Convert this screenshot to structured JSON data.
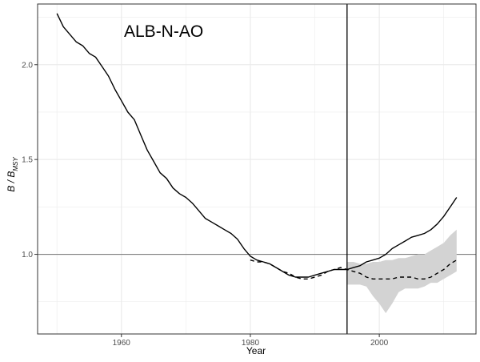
{
  "chart_data": {
    "type": "line",
    "title": "ALB-N-AO",
    "xlabel": "Year",
    "ylabel": {
      "main": "B / B",
      "subscript": "MSY"
    },
    "xlim": [
      1947,
      2015
    ],
    "ylim": [
      0.58,
      2.32
    ],
    "x_ticks": [
      1960,
      1980,
      2000
    ],
    "y_ticks": [
      1.0,
      1.5,
      2.0
    ],
    "y_tick_labels": [
      "1.0",
      "1.5",
      "2.0"
    ],
    "grid": true,
    "legend": "none",
    "reference_lines": {
      "horizontal_y": 1.0,
      "vertical_x": 1995
    },
    "colors": {
      "historical_line": "#000000",
      "projection_line": "#000000",
      "uncertainty_band": "#d3d3d3",
      "reference_line_h": "#808080",
      "reference_line_v": "#000000",
      "grid": "#ebebeb",
      "border": "#333333"
    },
    "series": [
      {
        "style": "solid",
        "x": [
          1950,
          1951,
          1952,
          1953,
          1954,
          1955,
          1956,
          1957,
          1958,
          1959,
          1960,
          1961,
          1962,
          1963,
          1964,
          1965,
          1966,
          1967,
          1968,
          1969,
          1970,
          1971,
          1972,
          1973,
          1974,
          1975,
          1976,
          1977,
          1978,
          1979,
          1980,
          1981,
          1982,
          1983,
          1984,
          1985,
          1986,
          1987,
          1988,
          1989,
          1990,
          1991,
          1992,
          1993,
          1994,
          1995,
          1996,
          1997,
          1998,
          1999,
          2000,
          2001,
          2002,
          2003,
          2004,
          2005,
          2006,
          2007,
          2008,
          2009,
          2010,
          2011,
          2012
        ],
        "y": [
          2.27,
          2.2,
          2.16,
          2.12,
          2.1,
          2.06,
          2.04,
          1.99,
          1.94,
          1.87,
          1.81,
          1.75,
          1.71,
          1.63,
          1.55,
          1.49,
          1.43,
          1.4,
          1.35,
          1.32,
          1.3,
          1.27,
          1.23,
          1.19,
          1.17,
          1.15,
          1.13,
          1.11,
          1.08,
          1.03,
          0.99,
          0.97,
          0.96,
          0.95,
          0.93,
          0.91,
          0.89,
          0.88,
          0.88,
          0.88,
          0.89,
          0.9,
          0.91,
          0.92,
          0.92,
          0.92,
          0.93,
          0.94,
          0.96,
          0.97,
          0.98,
          1.0,
          1.03,
          1.05,
          1.07,
          1.09,
          1.1,
          1.11,
          1.13,
          1.16,
          1.2,
          1.25,
          1.3
        ]
      },
      {
        "style": "dashed",
        "x": [
          1980,
          1981,
          1982,
          1983,
          1984,
          1985,
          1986,
          1987,
          1988,
          1989,
          1990,
          1991,
          1992,
          1993,
          1994,
          1995,
          1996,
          1997,
          1998,
          1999,
          2000,
          2001,
          2002,
          2003,
          2004,
          2005,
          2006,
          2007,
          2008,
          2009,
          2010,
          2011,
          2012
        ],
        "y": [
          0.97,
          0.96,
          0.96,
          0.95,
          0.93,
          0.91,
          0.9,
          0.88,
          0.87,
          0.87,
          0.88,
          0.89,
          0.91,
          0.92,
          0.93,
          0.92,
          0.91,
          0.9,
          0.88,
          0.87,
          0.87,
          0.87,
          0.87,
          0.88,
          0.88,
          0.88,
          0.87,
          0.87,
          0.88,
          0.9,
          0.92,
          0.95,
          0.97
        ]
      }
    ],
    "band": {
      "x": [
        1995,
        1996,
        1997,
        1998,
        1999,
        2000,
        2001,
        2002,
        2003,
        2004,
        2005,
        2006,
        2007,
        2008,
        2009,
        2010,
        2011,
        2012
      ],
      "lower": [
        0.84,
        0.84,
        0.84,
        0.83,
        0.78,
        0.74,
        0.69,
        0.74,
        0.8,
        0.82,
        0.82,
        0.82,
        0.83,
        0.85,
        0.85,
        0.87,
        0.89,
        0.91
      ],
      "upper": [
        0.96,
        0.96,
        0.95,
        0.95,
        0.96,
        0.96,
        0.97,
        0.97,
        0.98,
        0.98,
        0.99,
        1.0,
        1.0,
        1.02,
        1.04,
        1.06,
        1.1,
        1.13
      ]
    }
  }
}
